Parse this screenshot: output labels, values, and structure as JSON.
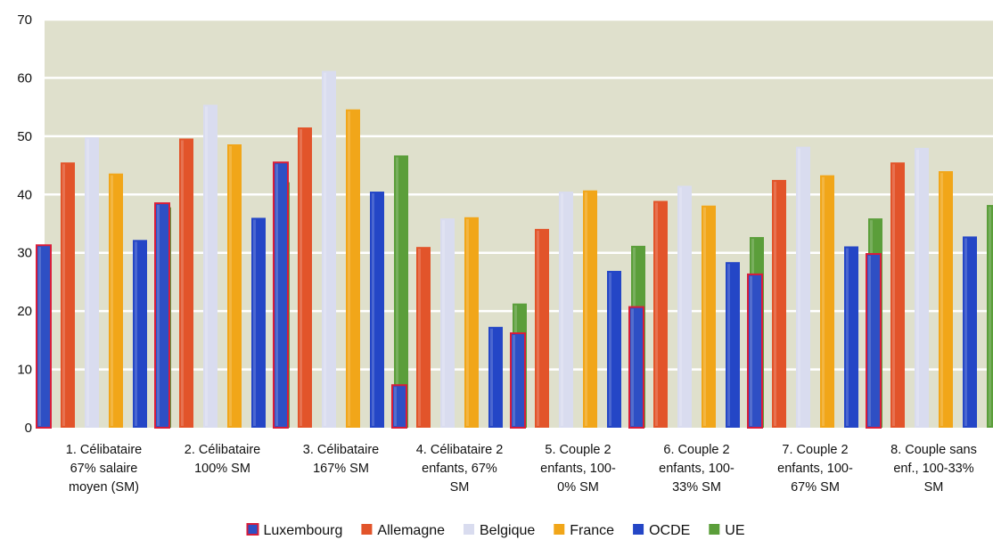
{
  "chart_data": {
    "type": "bar",
    "categories": [
      [
        "1. Célibataire",
        "67% salaire",
        "moyen (SM)"
      ],
      [
        "2. Célibataire",
        "100% SM"
      ],
      [
        "3. Célibataire",
        "167% SM"
      ],
      [
        "4. Célibataire 2",
        "enfants, 67%",
        "SM"
      ],
      [
        "5. Couple 2",
        "enfants, 100-",
        "0% SM"
      ],
      [
        "6. Couple 2",
        "enfants, 100-",
        "33% SM"
      ],
      [
        "7. Couple 2",
        "enfants, 100-",
        "67% SM"
      ],
      [
        "8. Couple sans",
        "enf., 100-33%",
        "SM"
      ]
    ],
    "series": [
      {
        "name": "Luxembourg",
        "color": "#2e4fc4",
        "border": "#d81d3a",
        "values": [
          31.3,
          38.5,
          45.5,
          7.3,
          16.2,
          20.7,
          26.3,
          29.8
        ]
      },
      {
        "name": "Allemagne",
        "color": "#e2542a",
        "values": [
          45.5,
          49.6,
          51.5,
          31.0,
          34.1,
          38.9,
          42.5,
          45.5
        ]
      },
      {
        "name": "Belgique",
        "color": "#d9dcef",
        "values": [
          49.8,
          55.4,
          61.2,
          35.9,
          40.5,
          41.5,
          48.2,
          48.0
        ]
      },
      {
        "name": "France",
        "color": "#f1a619",
        "values": [
          43.6,
          48.6,
          54.6,
          36.1,
          40.7,
          38.1,
          43.3,
          44.0
        ]
      },
      {
        "name": "OCDE",
        "color": "#2446c6",
        "values": [
          32.2,
          36.0,
          40.5,
          17.3,
          26.9,
          28.4,
          31.1,
          32.8
        ]
      },
      {
        "name": "UE",
        "color": "#5b9e3a",
        "values": [
          37.8,
          42.1,
          46.7,
          21.3,
          31.2,
          32.7,
          35.9,
          38.2
        ]
      }
    ],
    "yticks": [
      "0",
      "10",
      "20",
      "30",
      "40",
      "50",
      "60",
      "70"
    ],
    "ylim": [
      0,
      70
    ],
    "grid": true,
    "legend_position": "bottom",
    "plot_background": "#dfe0cc"
  }
}
